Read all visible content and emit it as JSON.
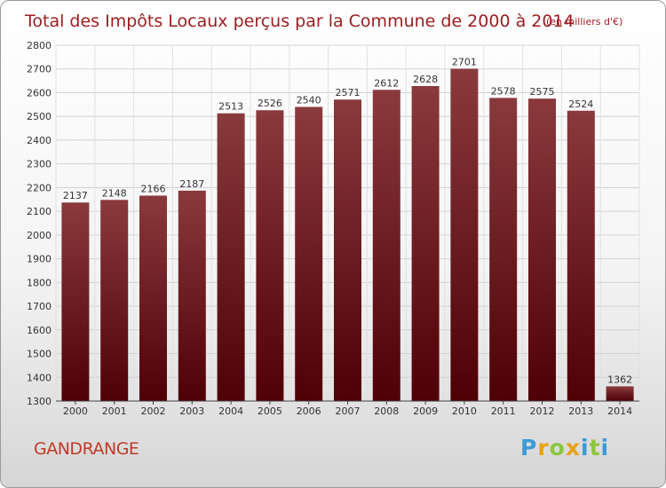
{
  "chart_data": {
    "type": "bar",
    "title": "Total des Impôts Locaux perçus par la Commune de 2000 à 2014",
    "subtitle": "(en milliers d'€)",
    "categories": [
      "2000",
      "2001",
      "2002",
      "2003",
      "2004",
      "2005",
      "2006",
      "2007",
      "2008",
      "2009",
      "2010",
      "2011",
      "2012",
      "2013",
      "2014"
    ],
    "values": [
      2137,
      2148,
      2166,
      2187,
      2513,
      2526,
      2540,
      2571,
      2612,
      2628,
      2701,
      2578,
      2575,
      2524,
      1362
    ],
    "ylim": [
      1300,
      2800
    ],
    "ytick_step": 100,
    "grid": true,
    "bar_color": "#7a1a1d"
  },
  "commune_name": "GANDRANGE",
  "logo": {
    "letters": [
      "P",
      "r",
      "o",
      "x",
      "i",
      "t",
      "i"
    ],
    "colors": [
      "#3a9bd8",
      "#e8a217",
      "#8cc63f",
      "#e8a217",
      "#3a9bd8",
      "#8cc63f",
      "#3a9bd8"
    ]
  }
}
